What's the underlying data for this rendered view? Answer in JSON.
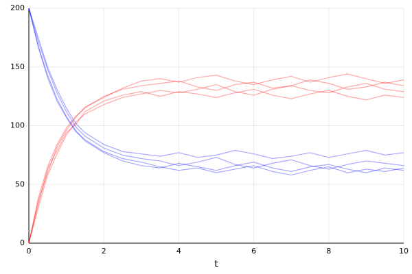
{
  "chart_data": {
    "type": "line",
    "x_label": "t",
    "x": [
      0,
      0.25,
      0.5,
      0.75,
      1,
      1.25,
      1.5,
      2,
      2.5,
      3,
      3.5,
      4,
      4.5,
      5,
      5.5,
      6,
      6.5,
      7,
      7.5,
      8,
      8.5,
      9,
      9.5,
      10
    ],
    "series": [
      {
        "color": "#ff0000",
        "values": [
          0,
          38,
          65,
          84,
          98,
          108,
          115,
          125,
          131,
          134,
          136,
          138,
          133,
          130,
          135,
          137,
          132,
          134,
          139,
          136,
          131,
          133,
          137,
          134
        ]
      },
      {
        "color": "#ff0000",
        "values": [
          0,
          30,
          58,
          76,
          92,
          103,
          110,
          118,
          124,
          127,
          130,
          128,
          131,
          135,
          129,
          126,
          131,
          134,
          130,
          128,
          133,
          136,
          131,
          129
        ]
      },
      {
        "color": "#ff0000",
        "values": [
          0,
          36,
          60,
          82,
          96,
          107,
          116,
          124,
          132,
          138,
          140,
          137,
          141,
          143,
          138,
          135,
          139,
          142,
          137,
          141,
          144,
          140,
          136,
          139
        ]
      },
      {
        "color": "#ff0000",
        "values": [
          0,
          33,
          63,
          79,
          94,
          101,
          112,
          121,
          126,
          129,
          125,
          129,
          127,
          124,
          128,
          131,
          126,
          123,
          127,
          130,
          125,
          122,
          126,
          124
        ]
      },
      {
        "color": "#0000ff",
        "values": [
          200,
          172,
          148,
          128,
          112,
          99,
          91,
          81,
          75,
          72,
          70,
          66,
          69,
          73,
          67,
          64,
          68,
          71,
          66,
          63,
          67,
          70,
          68,
          66
        ]
      },
      {
        "color": "#0000ff",
        "values": [
          200,
          167,
          141,
          121,
          107,
          95,
          88,
          78,
          72,
          69,
          65,
          62,
          64,
          60,
          63,
          66,
          61,
          58,
          62,
          65,
          60,
          63,
          61,
          64
        ]
      },
      {
        "color": "#0000ff",
        "values": [
          200,
          175,
          150,
          131,
          115,
          102,
          94,
          84,
          78,
          76,
          74,
          77,
          73,
          75,
          79,
          76,
          72,
          74,
          77,
          73,
          76,
          79,
          75,
          77
        ]
      },
      {
        "color": "#0000ff",
        "values": [
          200,
          168,
          143,
          123,
          108,
          96,
          87,
          77,
          70,
          66,
          64,
          68,
          65,
          62,
          66,
          69,
          64,
          61,
          65,
          67,
          63,
          60,
          64,
          62
        ]
      }
    ],
    "line_alpha": 0.35,
    "xlim": [
      0,
      10
    ],
    "xticks": [
      0,
      2,
      4,
      6,
      8,
      10
    ],
    "ylim": [
      0,
      200
    ],
    "yticks": [
      0,
      50,
      100,
      150,
      200
    ],
    "grid": true
  }
}
